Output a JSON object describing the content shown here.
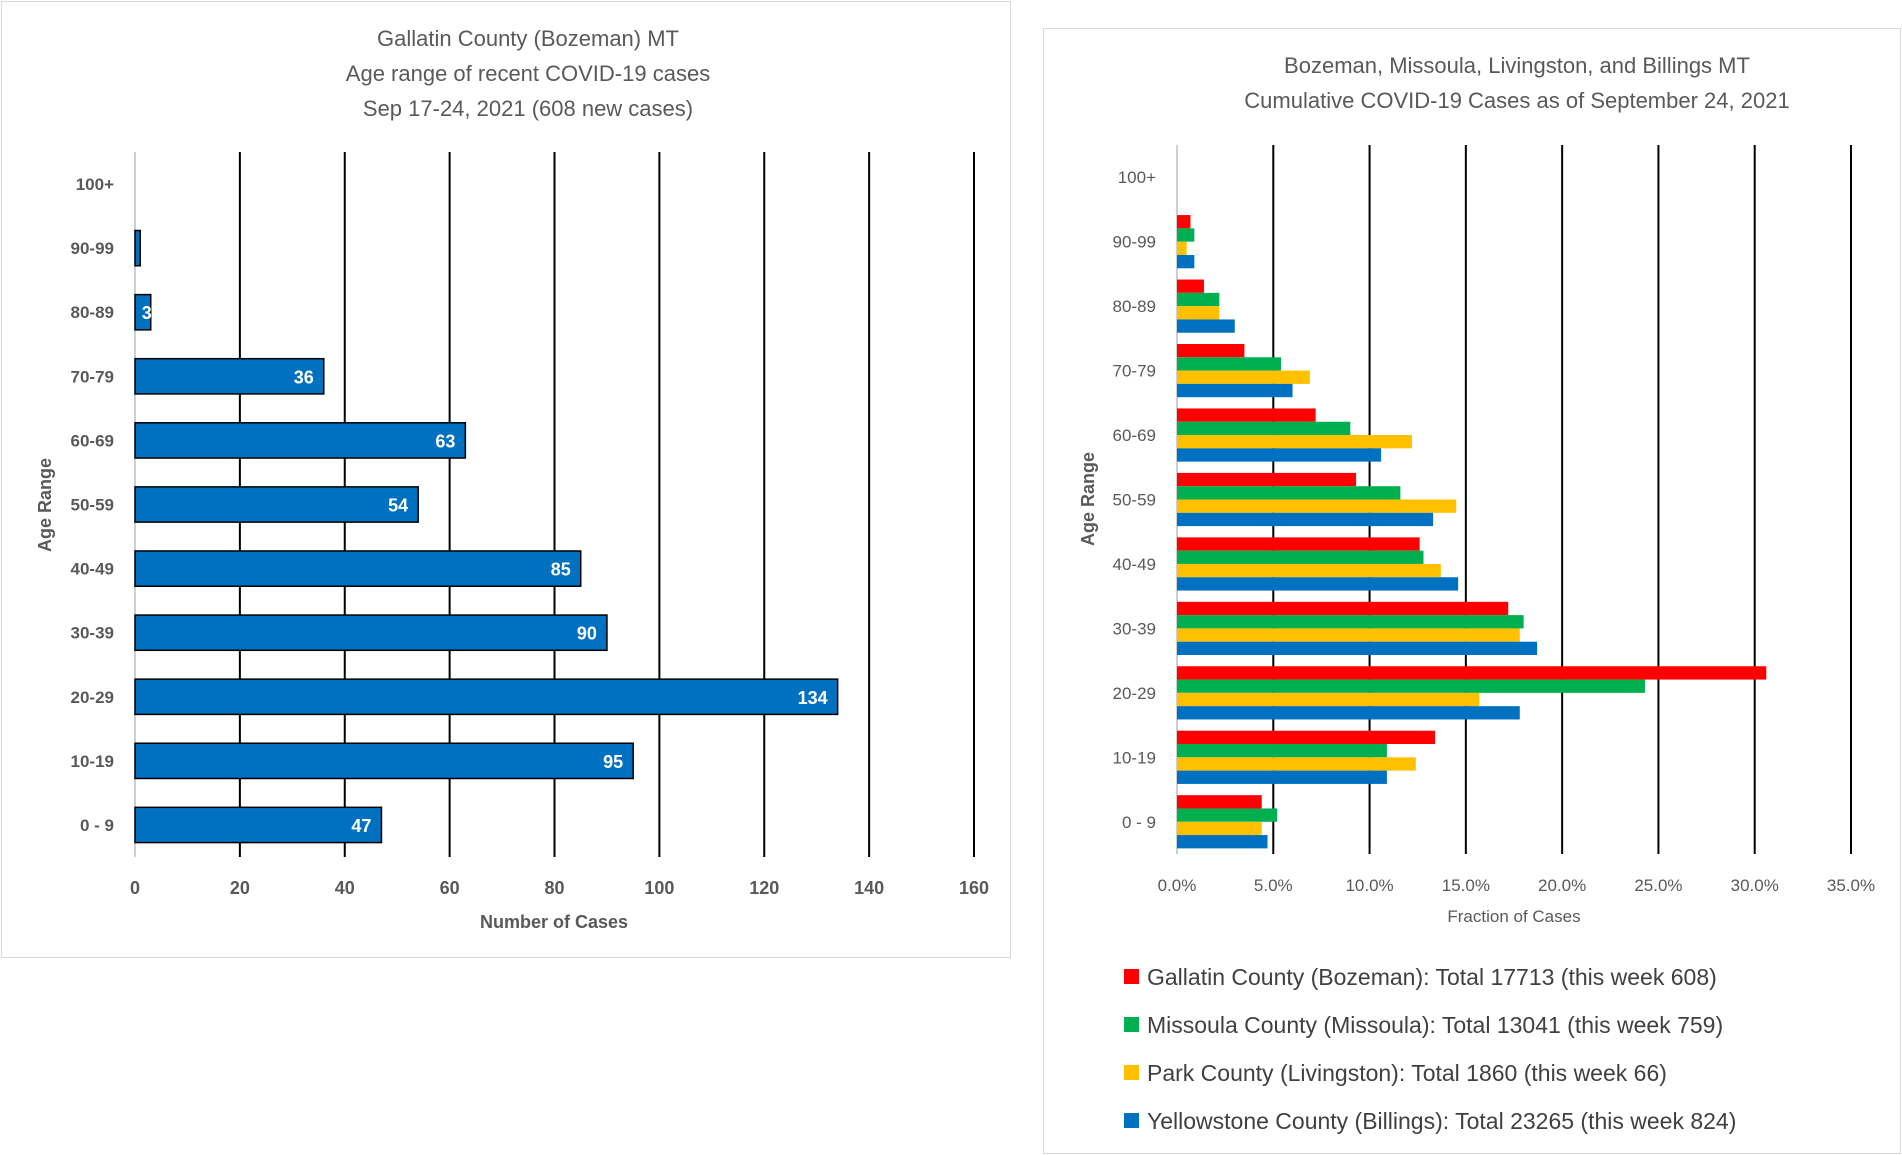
{
  "chart_data": [
    {
      "type": "bar",
      "orientation": "horizontal",
      "title_lines": [
        "Gallatin County (Bozeman) MT",
        "Age range of recent COVID-19 cases",
        "Sep 17-24, 2021 (608 new cases)"
      ],
      "xlabel": "Number of Cases",
      "ylabel": "Age Range",
      "categories": [
        "0 - 9",
        "10-19",
        "20-29",
        "30-39",
        "40-49",
        "50-59",
        "60-69",
        "70-79",
        "80-89",
        "90-99",
        "100+"
      ],
      "values": [
        47,
        95,
        134,
        90,
        85,
        54,
        63,
        36,
        3,
        1,
        0
      ],
      "data_labels": [
        "47",
        "95",
        "134",
        "90",
        "85",
        "54",
        "63",
        "36",
        "3",
        "",
        ""
      ],
      "xlim": [
        0,
        160
      ],
      "xticks": [
        0,
        20,
        40,
        60,
        80,
        100,
        120,
        140,
        160
      ],
      "xtick_labels": [
        "0",
        "20",
        "40",
        "60",
        "80",
        "100",
        "120",
        "140",
        "160"
      ],
      "grid": true,
      "color": "#0070C0"
    },
    {
      "type": "bar",
      "orientation": "horizontal",
      "title_lines": [
        "Bozeman, Missoula, Livingston, and Billings MT",
        "Cumulative COVID-19 Cases as of September 24, 2021"
      ],
      "xlabel": "Fraction of Cases",
      "ylabel": "Age Range",
      "categories": [
        "0 - 9",
        "10-19",
        "20-29",
        "30-39",
        "40-49",
        "50-59",
        "60-69",
        "70-79",
        "80-89",
        "90-99",
        "100+"
      ],
      "xlim": [
        0,
        0.35
      ],
      "xticks": [
        0,
        0.05,
        0.1,
        0.15,
        0.2,
        0.25,
        0.3,
        0.35
      ],
      "xtick_labels": [
        "0.0%",
        "5.0%",
        "10.0%",
        "15.0%",
        "20.0%",
        "25.0%",
        "30.0%",
        "35.0%"
      ],
      "grid": true,
      "legend_position": "bottom",
      "series": [
        {
          "name": "Gallatin County (Bozeman): Total 17713 (this week 608)",
          "color": "#FF0000",
          "values": [
            0.044,
            0.134,
            0.306,
            0.172,
            0.126,
            0.093,
            0.072,
            0.035,
            0.014,
            0.007,
            0.0
          ]
        },
        {
          "name": "Missoula County (Missoula): Total 13041 (this week 759)",
          "color": "#00B050",
          "values": [
            0.052,
            0.109,
            0.243,
            0.18,
            0.128,
            0.116,
            0.09,
            0.054,
            0.022,
            0.009,
            0.0
          ]
        },
        {
          "name": "Park County (Livingston): Total 1860 (this week 66)",
          "color": "#FFC000",
          "values": [
            0.044,
            0.124,
            0.157,
            0.178,
            0.137,
            0.145,
            0.122,
            0.069,
            0.022,
            0.005,
            0.0
          ]
        },
        {
          "name": "Yellowstone County (Billings): Total 23265 (this week 824)",
          "color": "#0070C0",
          "values": [
            0.047,
            0.109,
            0.178,
            0.187,
            0.146,
            0.133,
            0.106,
            0.06,
            0.03,
            0.009,
            0.0
          ]
        }
      ]
    }
  ]
}
